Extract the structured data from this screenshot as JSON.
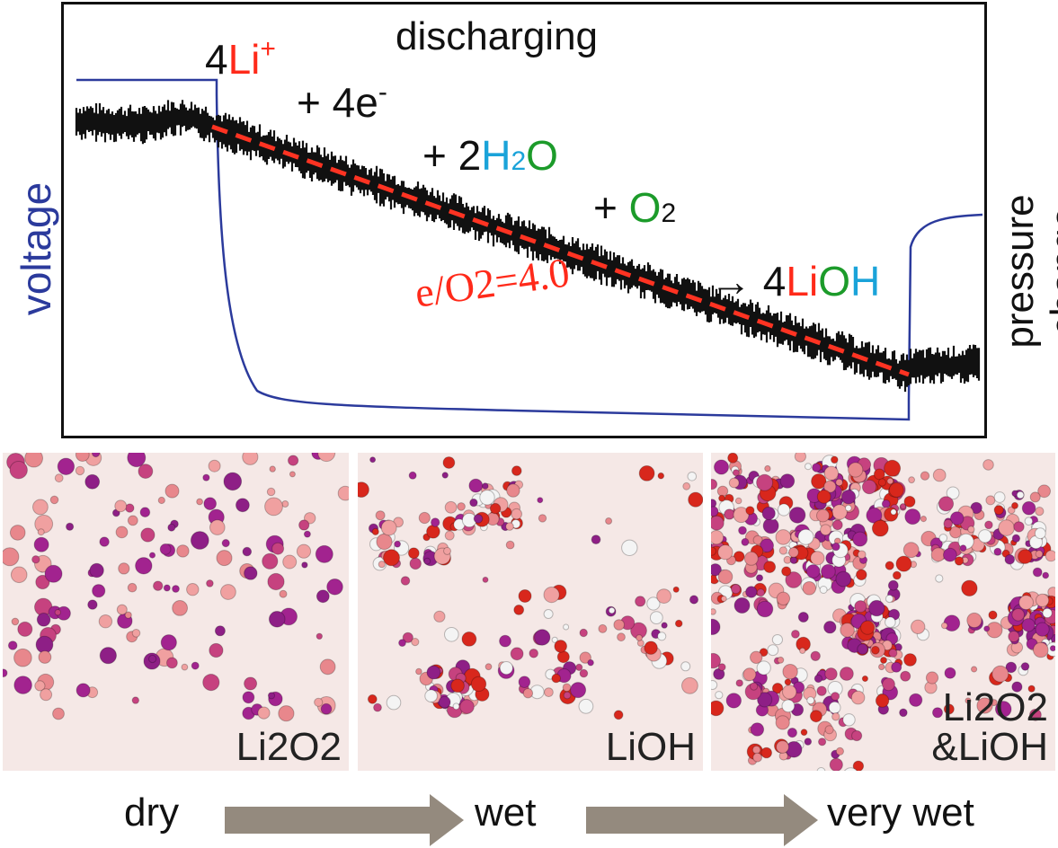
{
  "plot": {
    "title": "discharging",
    "ylabel_left": "voltage",
    "ylabel_right": "pressure change",
    "ratio_label": "e/O2=4.0",
    "colors": {
      "voltage": "#2b3a9c",
      "pressure": "#111111",
      "fit": "#ff3322"
    }
  },
  "equation": {
    "coef_li": "4",
    "li": "Li",
    "li_charge": "+",
    "plus1": "+ 4e",
    "e_charge": "-",
    "plus2": "+ 2",
    "h": "H",
    "h2o_sub": "2",
    "o_water": "O",
    "plus3": "+",
    "o2": "O",
    "o2_sub": "2",
    "arrow": "→ 4",
    "lioh_li": "Li",
    "lioh_o": "O",
    "lioh_h": "H"
  },
  "panels": [
    {
      "name": "dry",
      "label_line1": "Li2O2",
      "label_line2": ""
    },
    {
      "name": "wet",
      "label_line1": "LiOH",
      "label_line2": ""
    },
    {
      "name": "very-wet",
      "label_line1": "Li2O2",
      "label_line2": "&LiOH"
    }
  ],
  "stages": {
    "dry": "dry",
    "wet": "wet",
    "very_wet": "very wet"
  }
}
